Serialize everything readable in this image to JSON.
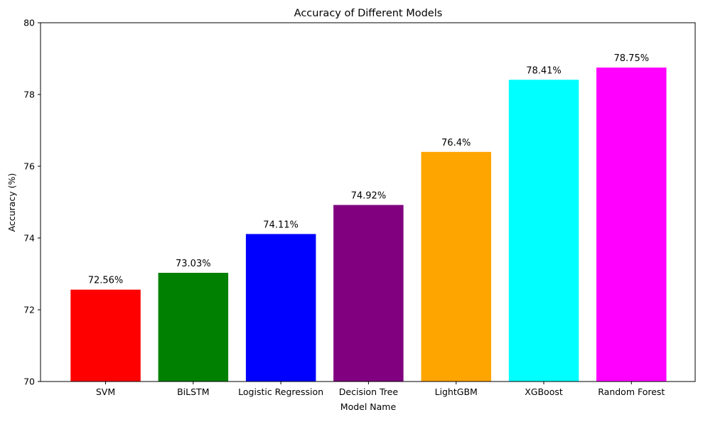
{
  "chart_data": {
    "type": "bar",
    "title": "Accuracy of Different Models",
    "xlabel": "Model Name",
    "ylabel": "Accuracy (%)",
    "ylim": [
      70,
      80
    ],
    "yticks": [
      70,
      72,
      74,
      76,
      78,
      80
    ],
    "grid": false,
    "categories": [
      "SVM",
      "BiLSTM",
      "Logistic Regression",
      "Decision Tree",
      "LightGBM",
      "XGBoost",
      "Random Forest"
    ],
    "values": [
      72.56,
      73.03,
      74.11,
      74.92,
      76.4,
      78.41,
      78.75
    ],
    "value_labels": [
      "72.56%",
      "73.03%",
      "74.11%",
      "74.92%",
      "76.4%",
      "78.41%",
      "78.75%"
    ],
    "colors": [
      "#ff0000",
      "#008000",
      "#0000ff",
      "#800080",
      "#ffa500",
      "#00ffff",
      "#ff00ff"
    ]
  }
}
